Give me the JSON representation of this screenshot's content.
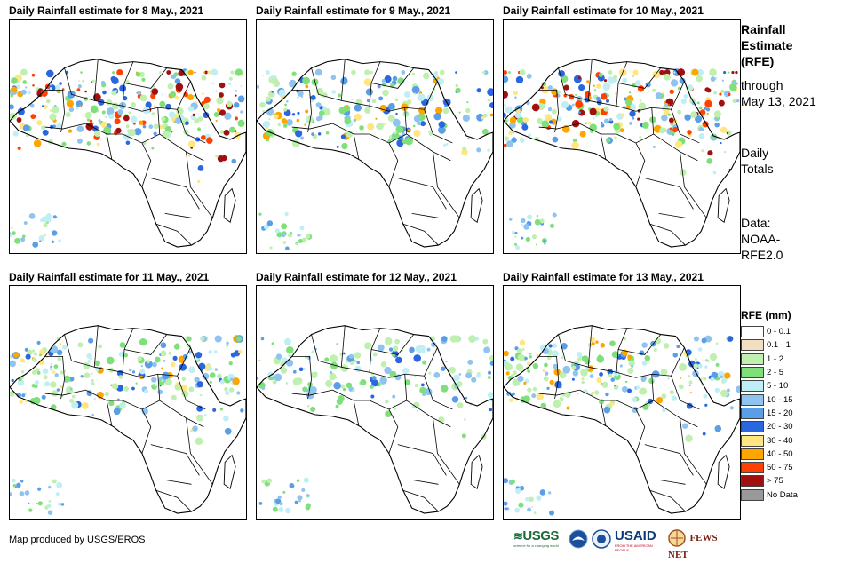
{
  "panels": [
    {
      "title": "Daily Rainfall estimate for 8 May., 2021",
      "rain_level": 3
    },
    {
      "title": "Daily Rainfall estimate for 9 May., 2021",
      "rain_level": 2
    },
    {
      "title": "Daily Rainfall estimate for 10 May., 2021",
      "rain_level": 3
    },
    {
      "title": "Daily Rainfall estimate for 11 May., 2021",
      "rain_level": 2
    },
    {
      "title": "Daily Rainfall estimate for 12 May., 2021",
      "rain_level": 1
    },
    {
      "title": "Daily Rainfall estimate for 13 May., 2021",
      "rain_level": 2
    }
  ],
  "side": {
    "heading_1": "Rainfall",
    "heading_2": "Estimate",
    "heading_3": "(RFE)",
    "through_1": "through",
    "through_2": "May 13, 2021",
    "totals_1": "Daily",
    "totals_2": "Totals",
    "data_1": "Data:",
    "data_2": "NOAA-",
    "data_3": "RFE2.0"
  },
  "legend": {
    "title": "RFE (mm)",
    "items": [
      {
        "label": "0 - 0.1",
        "color": "#ffffff"
      },
      {
        "label": "0.1 - 1",
        "color": "#f2dfc2"
      },
      {
        "label": "1 - 2",
        "color": "#bff0b0"
      },
      {
        "label": "2 - 5",
        "color": "#7fe07a"
      },
      {
        "label": "5 - 10",
        "color": "#bfeff5"
      },
      {
        "label": "10 - 15",
        "color": "#8fc4f0"
      },
      {
        "label": "15 - 20",
        "color": "#5a9ee8"
      },
      {
        "label": "20 - 30",
        "color": "#2a66e0"
      },
      {
        "label": "30 - 40",
        "color": "#ffe680"
      },
      {
        "label": "40 - 50",
        "color": "#ffa500"
      },
      {
        "label": "50 - 75",
        "color": "#ff4000"
      },
      {
        "label": "> 75",
        "color": "#a01010"
      },
      {
        "label": "No Data",
        "color": "#999999"
      }
    ]
  },
  "credit": "Map produced by USGS/EROS",
  "logos": {
    "usgs": "USGS",
    "usgs_tagline": "science for a changing world",
    "usaid": "USAID",
    "usaid_tagline": "FROM THE AMERICAN PEOPLE",
    "fewsnet": "FEWS NET"
  }
}
